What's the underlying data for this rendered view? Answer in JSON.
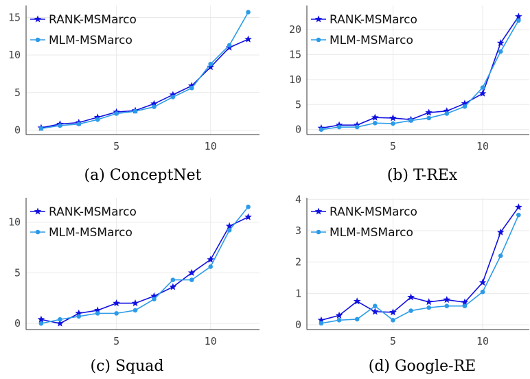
{
  "series_style": [
    {
      "color": "#1010e0",
      "marker": "star-icon"
    },
    {
      "color": "#2b9be8",
      "marker": "circle-icon"
    }
  ],
  "chart_data": [
    {
      "type": "line",
      "caption": "(a) ConceptNet",
      "x": [
        1,
        2,
        3,
        4,
        5,
        6,
        7,
        8,
        9,
        10,
        11,
        12
      ],
      "xticks": [
        5,
        10
      ],
      "yticks": [
        0,
        5,
        10,
        15
      ],
      "xlim": [
        0.2,
        12.6
      ],
      "ylim": [
        -0.6,
        16.6
      ],
      "grid": true,
      "legend": "top-left",
      "series": [
        {
          "name": "RANK-MSMarco",
          "values": [
            0.3,
            0.8,
            1.0,
            1.7,
            2.4,
            2.6,
            3.5,
            4.7,
            5.9,
            8.4,
            11.0,
            12.1
          ]
        },
        {
          "name": "MLM-MSMarco",
          "values": [
            0.2,
            0.6,
            0.8,
            1.4,
            2.2,
            2.5,
            3.1,
            4.4,
            5.6,
            8.8,
            11.3,
            15.7
          ]
        }
      ]
    },
    {
      "type": "line",
      "caption": "(b) T-REx",
      "x": [
        1,
        2,
        3,
        4,
        5,
        6,
        7,
        8,
        9,
        10,
        11,
        12
      ],
      "xticks": [
        5,
        10
      ],
      "yticks": [
        0,
        5,
        10,
        15,
        20
      ],
      "xlim": [
        0.2,
        12.6
      ],
      "ylim": [
        -1.0,
        24.8
      ],
      "grid": true,
      "legend": "top-left",
      "series": [
        {
          "name": "RANK-MSMarco",
          "values": [
            0.3,
            0.9,
            0.9,
            2.4,
            2.3,
            2.0,
            3.4,
            3.7,
            5.2,
            7.2,
            17.3,
            22.6
          ]
        },
        {
          "name": "MLM-MSMarco",
          "values": [
            0.0,
            0.5,
            0.5,
            1.3,
            1.2,
            1.8,
            2.3,
            3.2,
            4.6,
            8.4,
            15.6,
            21.8
          ]
        }
      ]
    },
    {
      "type": "line",
      "caption": "(c) Squad",
      "x": [
        1,
        2,
        3,
        4,
        5,
        6,
        7,
        8,
        9,
        10,
        11,
        12
      ],
      "xticks": [
        5,
        10
      ],
      "yticks": [
        0,
        5,
        10
      ],
      "xlim": [
        0.2,
        12.6
      ],
      "ylim": [
        -0.6,
        12.4
      ],
      "grid": true,
      "legend": "top-left",
      "series": [
        {
          "name": "RANK-MSMarco",
          "values": [
            0.4,
            0.0,
            1.0,
            1.3,
            2.0,
            2.0,
            2.7,
            3.6,
            5.0,
            6.3,
            9.6,
            10.5
          ]
        },
        {
          "name": "MLM-MSMarco",
          "values": [
            0.0,
            0.4,
            0.7,
            1.0,
            1.0,
            1.3,
            2.4,
            4.3,
            4.3,
            5.6,
            9.2,
            11.5
          ]
        }
      ]
    },
    {
      "type": "line",
      "caption": "(d) Google-RE",
      "x": [
        1,
        2,
        3,
        4,
        5,
        6,
        7,
        8,
        9,
        10,
        11,
        12
      ],
      "xticks": [
        5,
        10
      ],
      "yticks": [
        0,
        1,
        2,
        3,
        4
      ],
      "xlim": [
        0.2,
        12.6
      ],
      "ylim": [
        -0.15,
        4.05
      ],
      "grid": true,
      "legend": "top-left",
      "series": [
        {
          "name": "RANK-MSMarco",
          "values": [
            0.15,
            0.3,
            0.75,
            0.42,
            0.4,
            0.88,
            0.73,
            0.8,
            0.72,
            1.35,
            2.95,
            3.75
          ]
        },
        {
          "name": "MLM-MSMarco",
          "values": [
            0.05,
            0.15,
            0.18,
            0.6,
            0.15,
            0.45,
            0.55,
            0.6,
            0.6,
            1.05,
            2.2,
            3.5
          ]
        }
      ]
    }
  ]
}
